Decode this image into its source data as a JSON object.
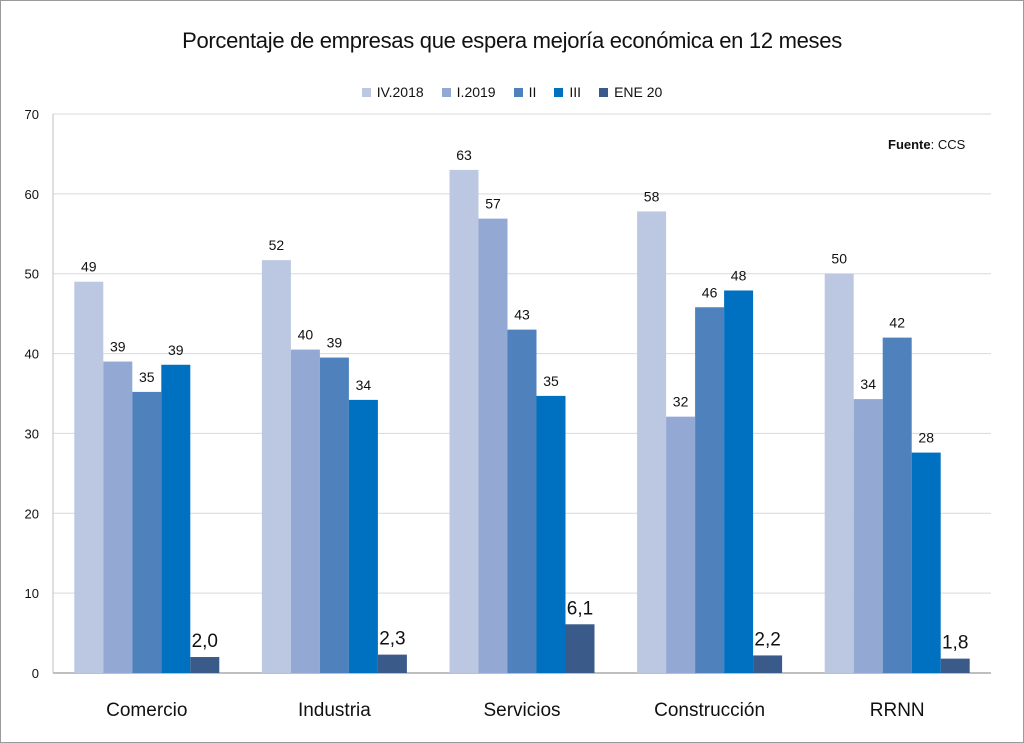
{
  "chart_data": {
    "type": "bar",
    "title": "Porcentaje de empresas que espera mejoría económica en 12 meses",
    "categories": [
      "Comercio",
      "Industria",
      "Servicios",
      "Construcción",
      "RRNN"
    ],
    "series": [
      {
        "name": "IV.2018",
        "color": "#bcc8e2",
        "values": [
          49,
          51.7,
          63,
          57.8,
          50
        ],
        "labels": [
          "49",
          "52",
          "63",
          "58",
          "50"
        ]
      },
      {
        "name": "I.2019",
        "color": "#93a9d4",
        "values": [
          39,
          40.5,
          56.9,
          32.1,
          34.3
        ],
        "labels": [
          "39",
          "40",
          "57",
          "32",
          "34"
        ]
      },
      {
        "name": "II",
        "color": "#4f81bd",
        "values": [
          35.2,
          39.5,
          43,
          45.8,
          42
        ],
        "labels": [
          "35",
          "39",
          "43",
          "46",
          "42"
        ]
      },
      {
        "name": "III",
        "color": "#0070c0",
        "values": [
          38.6,
          34.2,
          34.7,
          47.9,
          27.6
        ],
        "labels": [
          "39",
          "34",
          "35",
          "48",
          "28"
        ]
      },
      {
        "name": "ENE 20",
        "color": "#3a5a8a",
        "values": [
          2.0,
          2.3,
          6.1,
          2.2,
          1.8
        ],
        "labels": [
          "2,0",
          "2,3",
          "6,1",
          "2,2",
          "1,8"
        ]
      }
    ],
    "ylim": [
      0,
      70
    ],
    "yticks": [
      0,
      10,
      20,
      30,
      40,
      50,
      60,
      70
    ],
    "grid": true,
    "legend": "top-center"
  },
  "source": {
    "label": "Fuente",
    "value": ": CCS"
  }
}
